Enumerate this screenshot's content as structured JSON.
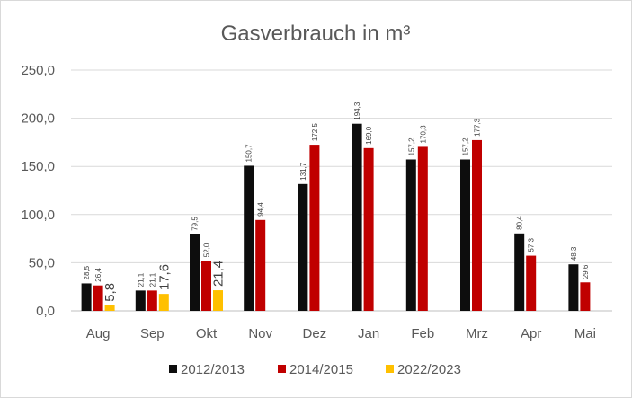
{
  "chart_data": {
    "type": "bar",
    "title": "Gasverbrauch in m³",
    "categories": [
      "Aug",
      "Sep",
      "Okt",
      "Nov",
      "Dez",
      "Jan",
      "Feb",
      "Mrz",
      "Apr",
      "Mai"
    ],
    "series": [
      {
        "name": "2012/2013",
        "color": "#0d0d0d",
        "values": [
          28.5,
          21.1,
          79.5,
          150.7,
          131.7,
          194.3,
          157.2,
          157.2,
          80.4,
          48.3
        ],
        "labels": [
          "28,5",
          "21,1",
          "79,5",
          "150,7",
          "131,7",
          "194,3",
          "157,2",
          "157,2",
          "80,4",
          "48,3"
        ]
      },
      {
        "name": "2014/2015",
        "color": "#c00000",
        "values": [
          26.4,
          21.1,
          52.0,
          94.4,
          172.5,
          169.0,
          170.3,
          177.3,
          57.3,
          29.6
        ],
        "labels": [
          "26,4",
          "21,1",
          "52,0",
          "94,4",
          "172,5",
          "169,0",
          "170,3",
          "177,3",
          "57,3",
          "29,6"
        ]
      },
      {
        "name": "2022/2023",
        "color": "#ffc000",
        "values": [
          5.8,
          17.6,
          21.4,
          null,
          null,
          null,
          null,
          null,
          null,
          null
        ],
        "labels": [
          "5,8",
          "17,6",
          "21,4",
          "",
          "",
          "",
          "",
          "",
          "",
          ""
        ]
      }
    ],
    "ylim": [
      0,
      250
    ],
    "yticks": [
      0,
      50,
      100,
      150,
      200,
      250
    ],
    "ytick_labels": [
      "0,0",
      "50,0",
      "100,0",
      "150,0",
      "200,0",
      "250,0"
    ],
    "grid": true,
    "legend_position": "bottom"
  }
}
